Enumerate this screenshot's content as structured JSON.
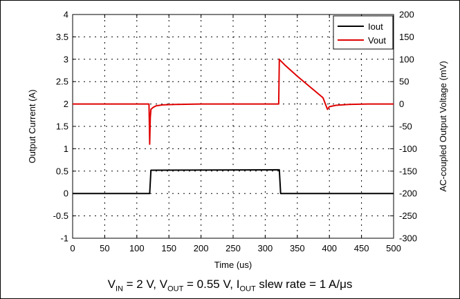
{
  "chart_data": {
    "type": "line",
    "xlabel": "Time (us)",
    "ylabel": "Output Current (A)",
    "y2label": "AC-coupled Output Voltage (mV)",
    "xlim": [
      0,
      500
    ],
    "ylim": [
      -1,
      4
    ],
    "y2lim": [
      -300,
      200
    ],
    "xticks": [
      "0",
      "50",
      "100",
      "150",
      "200",
      "250",
      "300",
      "350",
      "400",
      "450",
      "500"
    ],
    "yticks": [
      "-1",
      "-0.5",
      "0",
      "0.5",
      "1",
      "1.5",
      "2",
      "2.5",
      "3",
      "3.5",
      "4"
    ],
    "y2ticks": [
      "-300",
      "-250",
      "-200",
      "-150",
      "-100",
      "-50",
      "0",
      "50",
      "100",
      "150",
      "200"
    ],
    "grid": true,
    "legend_position": "top-right",
    "series": [
      {
        "name": "Iout",
        "color": "#000000",
        "axis": "left",
        "x": [
          0,
          120,
          122,
          322,
          324,
          500
        ],
        "y": [
          0,
          0,
          0.52,
          0.53,
          0,
          0
        ]
      },
      {
        "name": "Vout",
        "color": "#e00000",
        "axis": "right",
        "x": [
          0,
          119,
          120,
          121,
          122,
          125,
          130,
          140,
          160,
          200,
          250,
          300,
          321,
          322,
          323,
          330,
          350,
          370,
          390,
          397,
          400,
          410,
          430,
          460,
          500
        ],
        "y": [
          0,
          0,
          -90,
          -30,
          -12,
          -8,
          -4,
          -2,
          -1,
          0,
          0,
          0,
          0,
          100,
          98,
          88,
          62,
          38,
          14,
          -12,
          -6,
          -3,
          -1,
          0,
          0
        ]
      }
    ]
  },
  "caption": {
    "v_in_var": "V",
    "v_in_sub": "IN",
    "v_in_value": " = 2 V, ",
    "v_out_var": "V",
    "v_out_sub": "OUT",
    "v_out_value": " = 0.55 V, ",
    "i_out_var": "I",
    "i_out_sub": "OUT",
    "i_out_value": " slew rate = 1 A/μs"
  }
}
